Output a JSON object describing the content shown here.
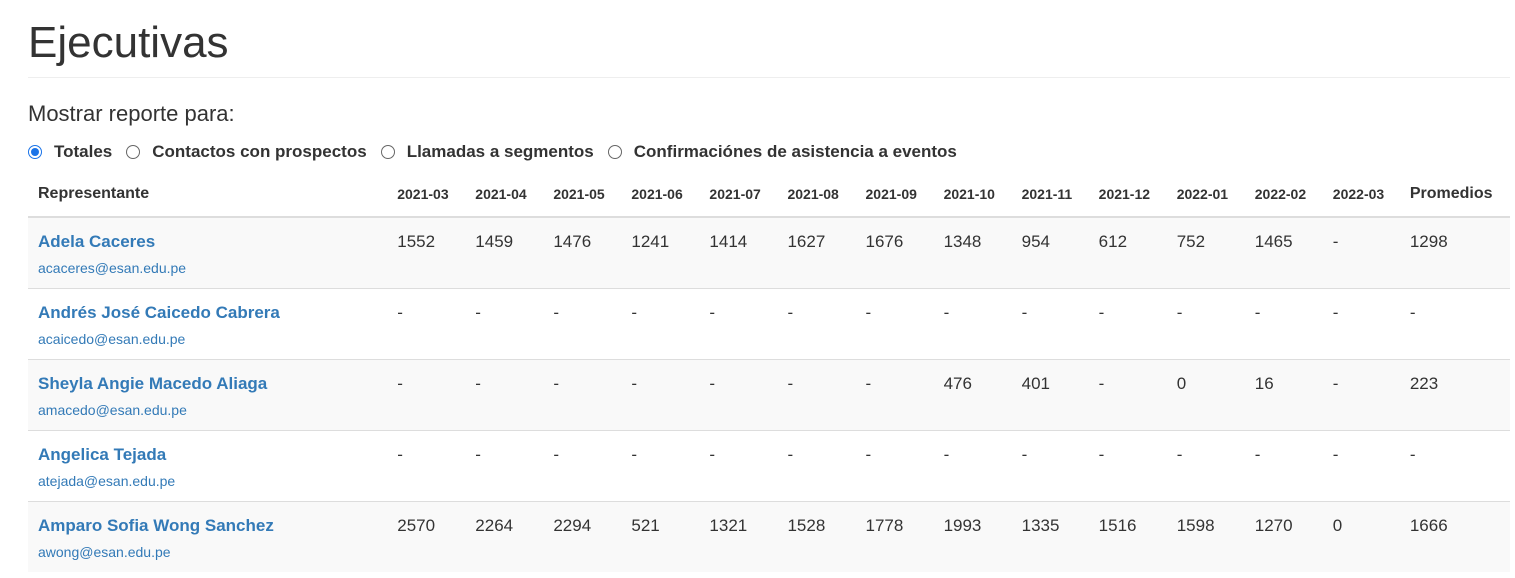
{
  "page": {
    "title": "Ejecutivas",
    "report_label": "Mostrar reporte para:",
    "accent_color": "#1a73e8",
    "link_color": "#337ab7"
  },
  "report_options": [
    {
      "label": "Totales",
      "checked": true
    },
    {
      "label": "Contactos con prospectos",
      "checked": false
    },
    {
      "label": "Llamadas a segmentos",
      "checked": false
    },
    {
      "label": "Confirmaciónes de asistencia a eventos",
      "checked": false
    }
  ],
  "table": {
    "rep_header": "Representante",
    "months": [
      "2021-03",
      "2021-04",
      "2021-05",
      "2021-06",
      "2021-07",
      "2021-08",
      "2021-09",
      "2021-10",
      "2021-11",
      "2021-12",
      "2022-01",
      "2022-02",
      "2022-03"
    ],
    "avg_header": "Promedios",
    "rows": [
      {
        "name": "Adela Caceres",
        "email": "acaceres@esan.edu.pe",
        "values": [
          "1552",
          "1459",
          "1476",
          "1241",
          "1414",
          "1627",
          "1676",
          "1348",
          "954",
          "612",
          "752",
          "1465",
          "-"
        ],
        "avg": "1298"
      },
      {
        "name": "Andrés José Caicedo Cabrera",
        "email": "acaicedo@esan.edu.pe",
        "values": [
          "-",
          "-",
          "-",
          "-",
          "-",
          "-",
          "-",
          "-",
          "-",
          "-",
          "-",
          "-",
          "-"
        ],
        "avg": "-"
      },
      {
        "name": "Sheyla Angie Macedo Aliaga",
        "email": "amacedo@esan.edu.pe",
        "values": [
          "-",
          "-",
          "-",
          "-",
          "-",
          "-",
          "-",
          "476",
          "401",
          "-",
          "0",
          "16",
          "-"
        ],
        "avg": "223"
      },
      {
        "name": "Angelica Tejada",
        "email": "atejada@esan.edu.pe",
        "values": [
          "-",
          "-",
          "-",
          "-",
          "-",
          "-",
          "-",
          "-",
          "-",
          "-",
          "-",
          "-",
          "-"
        ],
        "avg": "-"
      },
      {
        "name": "Amparo Sofia Wong Sanchez",
        "email": "awong@esan.edu.pe",
        "values": [
          "2570",
          "2264",
          "2294",
          "521",
          "1321",
          "1528",
          "1778",
          "1993",
          "1335",
          "1516",
          "1598",
          "1270",
          "0"
        ],
        "avg": "1666"
      }
    ]
  }
}
